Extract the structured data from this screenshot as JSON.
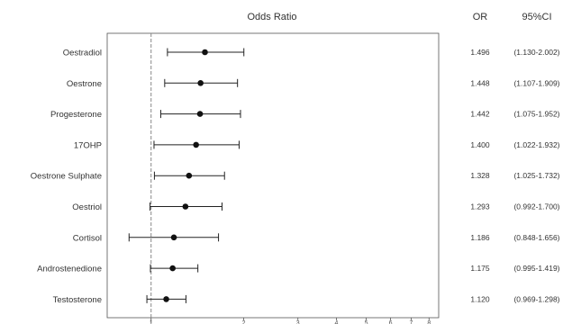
{
  "chart_data": {
    "type": "forest",
    "title": "Odds Ratio",
    "columns": {
      "or": "OR",
      "ci": "95%CI"
    },
    "x_scale": "log",
    "xlim": [
      0.72,
      8.6
    ],
    "reference_line": 1,
    "ticks": [
      1,
      2,
      3,
      4,
      5,
      6,
      7,
      8
    ],
    "tick_labels": [
      "1",
      "2",
      "3",
      "4",
      "5",
      "6",
      "7",
      "8"
    ],
    "rows": [
      {
        "label": "Oestradiol",
        "or": 1.496,
        "lo": 1.13,
        "hi": 2.002,
        "or_text": "1.496",
        "ci_text": "(1.130-2.002)"
      },
      {
        "label": "Oestrone",
        "or": 1.448,
        "lo": 1.107,
        "hi": 1.909,
        "or_text": "1.448",
        "ci_text": "(1.107-1.909)"
      },
      {
        "label": "Progesterone",
        "or": 1.442,
        "lo": 1.075,
        "hi": 1.952,
        "or_text": "1.442",
        "ci_text": "(1.075-1.952)"
      },
      {
        "label": "17OHP",
        "or": 1.4,
        "lo": 1.022,
        "hi": 1.932,
        "or_text": "1.400",
        "ci_text": "(1.022-1.932)"
      },
      {
        "label": "Oestrone Sulphate",
        "or": 1.328,
        "lo": 1.025,
        "hi": 1.732,
        "or_text": "1.328",
        "ci_text": "(1.025-1.732)"
      },
      {
        "label": "Oestriol",
        "or": 1.293,
        "lo": 0.992,
        "hi": 1.7,
        "or_text": "1.293",
        "ci_text": "(0.992-1.700)"
      },
      {
        "label": "Cortisol",
        "or": 1.186,
        "lo": 0.848,
        "hi": 1.656,
        "or_text": "1.186",
        "ci_text": "(0.848-1.656)"
      },
      {
        "label": "Androstenedione",
        "or": 1.175,
        "lo": 0.995,
        "hi": 1.419,
        "or_text": "1.175",
        "ci_text": "(0.995-1.419)"
      },
      {
        "label": "Testosterone",
        "or": 1.12,
        "lo": 0.969,
        "hi": 1.298,
        "or_text": "1.120",
        "ci_text": "(0.969-1.298)"
      }
    ]
  }
}
